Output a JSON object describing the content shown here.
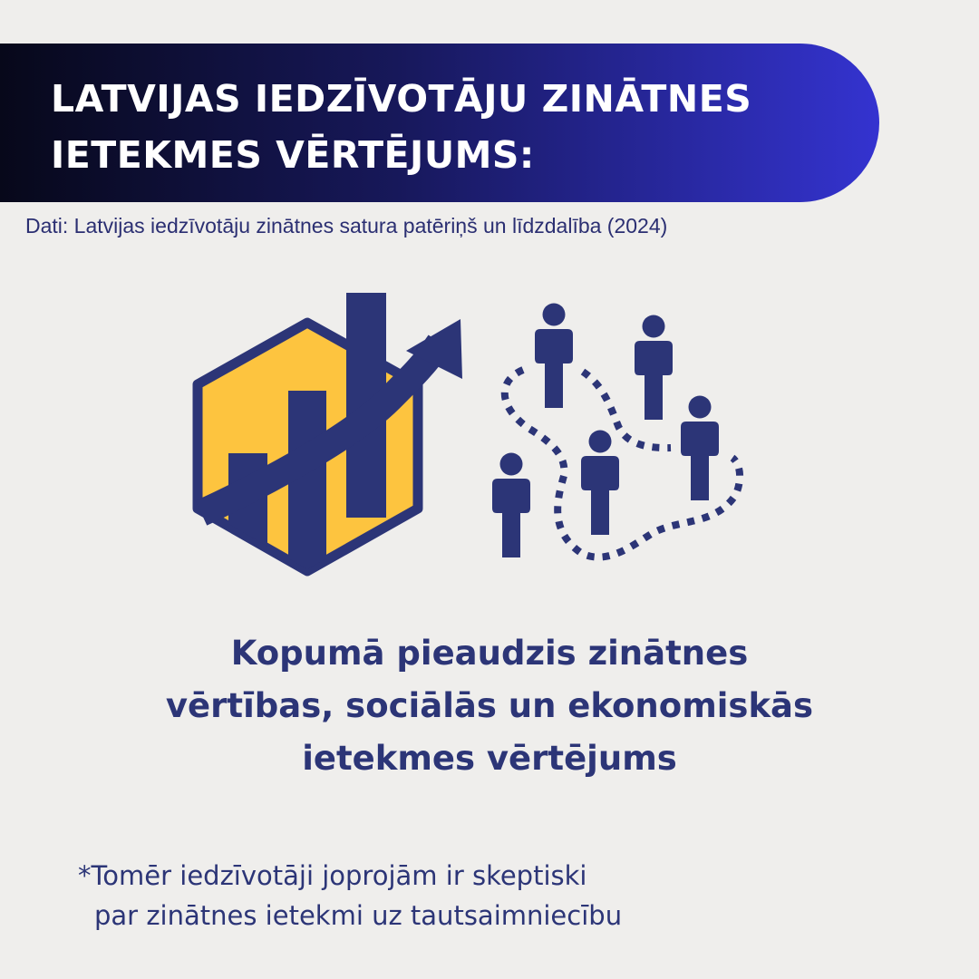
{
  "header": {
    "title_lines": [
      "LATVIJAS IEDZĪVOTĀJU ZINĀTNES",
      "IETEKMES VĒRTĒJUMS:"
    ],
    "subtitle": "Dati: Latvijas iedzīvotāju zinātnes satura patēriņš un līdzdalība (2024)"
  },
  "illustration": {
    "left_icon": "hexagon-bar-chart-growth-arrow-icon",
    "right_icon": "people-network-dotted-path-icon"
  },
  "main": {
    "lines": [
      "Kopumā pieaudzis zinātnes",
      "vērtības, sociālās un ekonomiskās",
      "ietekmes vērtējums"
    ]
  },
  "note": {
    "lines": [
      "*Tomēr iedzīvotāji joprojām ir skeptiski",
      "par zinātnes ietekmi uz tautsaimniecību"
    ]
  },
  "colors": {
    "navy": "#2c3577",
    "yellow": "#fdc43f",
    "banner_start": "#07081a",
    "banner_end": "#3433d0",
    "background": "#efeeec"
  }
}
